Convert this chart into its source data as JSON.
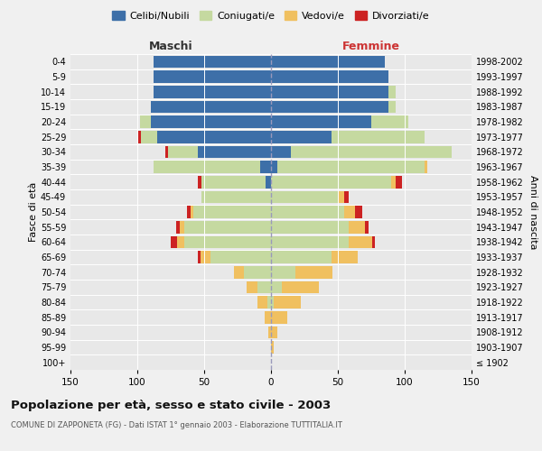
{
  "age_groups": [
    "100+",
    "95-99",
    "90-94",
    "85-89",
    "80-84",
    "75-79",
    "70-74",
    "65-69",
    "60-64",
    "55-59",
    "50-54",
    "45-49",
    "40-44",
    "35-39",
    "30-34",
    "25-29",
    "20-24",
    "15-19",
    "10-14",
    "5-9",
    "0-4"
  ],
  "birth_years": [
    "≤ 1902",
    "1903-1907",
    "1908-1912",
    "1913-1917",
    "1918-1922",
    "1923-1927",
    "1928-1932",
    "1933-1937",
    "1938-1942",
    "1943-1947",
    "1948-1952",
    "1953-1957",
    "1958-1962",
    "1963-1967",
    "1968-1972",
    "1973-1977",
    "1978-1982",
    "1983-1987",
    "1988-1992",
    "1993-1997",
    "1998-2002"
  ],
  "male": {
    "celibe": [
      0,
      0,
      0,
      0,
      0,
      0,
      0,
      0,
      0,
      0,
      0,
      0,
      4,
      8,
      55,
      85,
      90,
      90,
      88,
      88,
      88
    ],
    "coniugato": [
      0,
      0,
      0,
      0,
      3,
      10,
      20,
      45,
      65,
      65,
      58,
      52,
      48,
      80,
      22,
      12,
      8,
      0,
      0,
      0,
      0
    ],
    "vedovo": [
      0,
      0,
      2,
      5,
      7,
      8,
      8,
      8,
      5,
      3,
      2,
      0,
      0,
      0,
      0,
      0,
      0,
      0,
      0,
      0,
      0
    ],
    "divorziato": [
      0,
      0,
      0,
      0,
      0,
      0,
      0,
      2,
      5,
      3,
      3,
      0,
      3,
      0,
      2,
      2,
      0,
      0,
      0,
      0,
      0
    ]
  },
  "female": {
    "nubile": [
      0,
      0,
      0,
      0,
      0,
      0,
      0,
      0,
      0,
      0,
      0,
      0,
      0,
      5,
      15,
      45,
      75,
      88,
      88,
      88,
      85
    ],
    "coniugata": [
      0,
      0,
      0,
      0,
      2,
      8,
      18,
      45,
      58,
      58,
      55,
      50,
      90,
      110,
      120,
      70,
      28,
      5,
      5,
      0,
      0
    ],
    "vedova": [
      0,
      2,
      5,
      12,
      20,
      28,
      28,
      20,
      18,
      12,
      8,
      5,
      3,
      2,
      0,
      0,
      0,
      0,
      0,
      0,
      0
    ],
    "divorziata": [
      0,
      0,
      0,
      0,
      0,
      0,
      0,
      0,
      2,
      3,
      5,
      3,
      5,
      0,
      0,
      0,
      0,
      0,
      0,
      0,
      0
    ]
  },
  "color_celibe": "#3d6fa8",
  "color_coniugato": "#c5d9a0",
  "color_vedovo": "#f0c060",
  "color_divorziato": "#cc2222",
  "xlim": 150,
  "title": "Popolazione per età, sesso e stato civile - 2003",
  "subtitle": "COMUNE DI ZAPPONETA (FG) - Dati ISTAT 1° gennaio 2003 - Elaborazione TUTTITALIA.IT",
  "ylabel_left": "Fasce di età",
  "ylabel_right": "Anni di nascita",
  "xlabel_maschi": "Maschi",
  "xlabel_femmine": "Femmine"
}
